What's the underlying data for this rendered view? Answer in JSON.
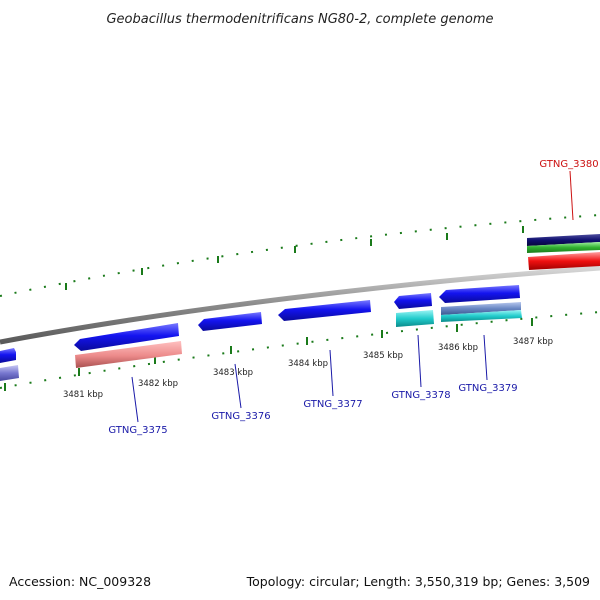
{
  "title": "Geobacillus thermodenitrificans NG80-2, complete genome",
  "footer": {
    "accession": "Accession: NC_009328",
    "summary": "Topology: circular; Length: 3,550,319 bp; Genes: 3,509"
  },
  "ticks": [
    "3481 kbp",
    "3482 kbp",
    "3483 kbp",
    "3484 kbp",
    "3485 kbp",
    "3486 kbp",
    "3487 kbp"
  ],
  "genes": [
    {
      "id": "GTNG_3375",
      "color": "#1a1aa8"
    },
    {
      "id": "GTNG_3376",
      "color": "#1a1aa8"
    },
    {
      "id": "GTNG_3377",
      "color": "#1a1aa8"
    },
    {
      "id": "GTNG_3378",
      "color": "#1a1aa8"
    },
    {
      "id": "GTNG_3379",
      "color": "#1a1aa8"
    },
    {
      "id": "GTNG_3380",
      "color": "#cc1111"
    }
  ],
  "colors": {
    "backbone": "#8a8a8a",
    "feature_blue": "#1010e0",
    "feature_pink": "#e88080",
    "feature_cyan": "#20c8c8",
    "feature_steel": "#6a8ac0",
    "feature_green": "#30b030",
    "feature_navy": "#101070",
    "feature_red": "#ee1010",
    "tick_green": "#1a7a1a"
  }
}
